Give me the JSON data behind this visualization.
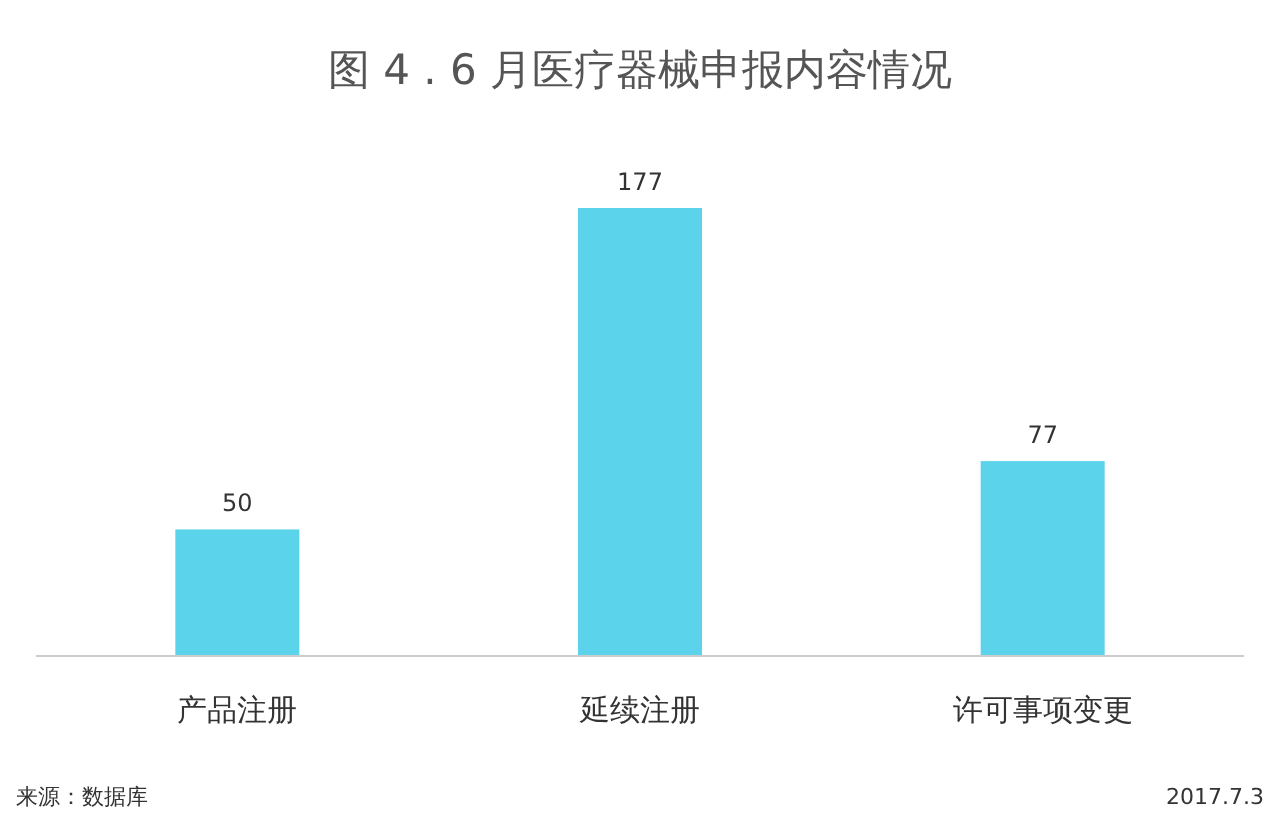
{
  "chart_data": {
    "type": "bar",
    "title": "图 4 . 6 月医疗器械申报内容情况",
    "categories": [
      "产品注册",
      "延续注册",
      "许可事项变更"
    ],
    "values": [
      50,
      177,
      77
    ],
    "color": "#5bd3ea",
    "data_labels": true,
    "annotations": [
      "来源：数据库",
      "2017.7.3"
    ]
  }
}
